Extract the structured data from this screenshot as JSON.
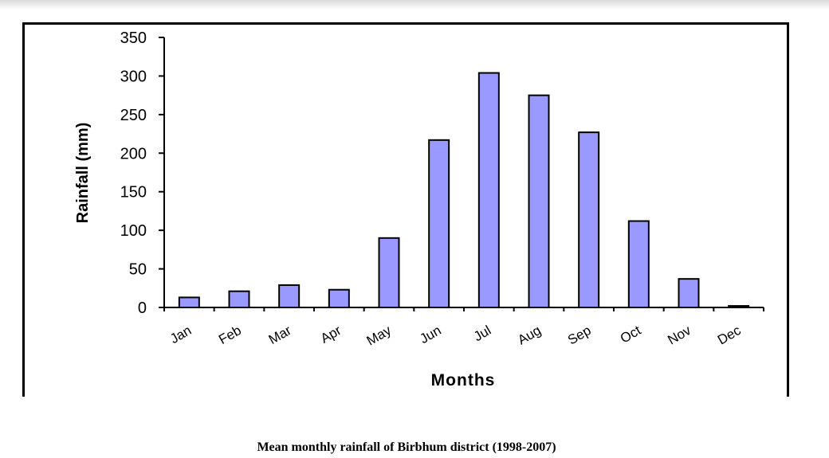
{
  "chart_data": {
    "type": "bar",
    "categories": [
      "Jan",
      "Feb",
      "Mar",
      "Apr",
      "May",
      "Jun",
      "Jul",
      "Aug",
      "Sep",
      "Oct",
      "Nov",
      "Dec"
    ],
    "values": [
      13,
      21,
      29,
      23,
      90,
      217,
      304,
      275,
      227,
      112,
      37,
      2
    ],
    "xlabel": "Months",
    "ylabel": "Rainfall (mm)",
    "ylim": [
      0,
      350
    ],
    "yticks": [
      "0",
      "50",
      "100",
      "150",
      "200",
      "250",
      "300",
      "350"
    ],
    "grid": false,
    "legend": "none",
    "bar_color": "#9999ff",
    "edge_color": "#000000"
  },
  "caption": "Mean monthly rainfall of Birbhum district (1998-2007)"
}
